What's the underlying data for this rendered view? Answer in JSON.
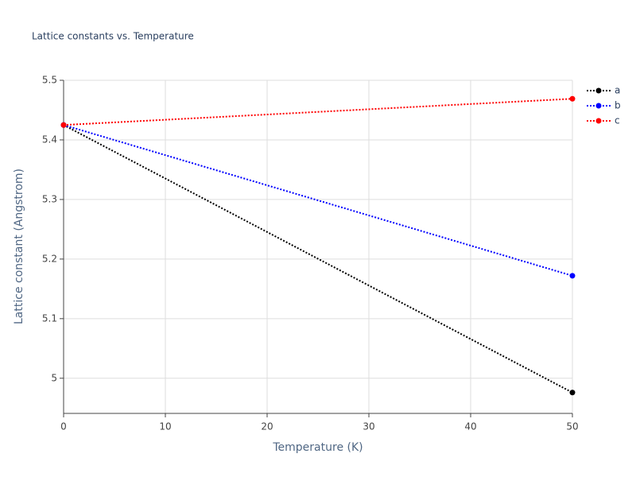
{
  "chart_data": {
    "type": "line",
    "title": "Lattice constants vs. Temperature",
    "x_label": "Temperature (K)",
    "y_label": "Lattice constant (Angstrom)",
    "x": [
      0,
      50
    ],
    "series": [
      {
        "name": "a",
        "color": "#000000",
        "values": [
          5.425,
          4.976
        ]
      },
      {
        "name": "b",
        "color": "#0000ff",
        "values": [
          5.425,
          5.172
        ]
      },
      {
        "name": "c",
        "color": "#ff0000",
        "values": [
          5.425,
          5.469
        ]
      }
    ],
    "xlim": [
      0,
      50
    ],
    "xticks": [
      0,
      10,
      20,
      30,
      40,
      50
    ],
    "ylim": [
      4.941,
      5.5
    ],
    "yticks": [
      5,
      5.1,
      5.2,
      5.3,
      5.4,
      5.5
    ],
    "grid": true,
    "line_dash": "dot",
    "legend": "top-right"
  }
}
